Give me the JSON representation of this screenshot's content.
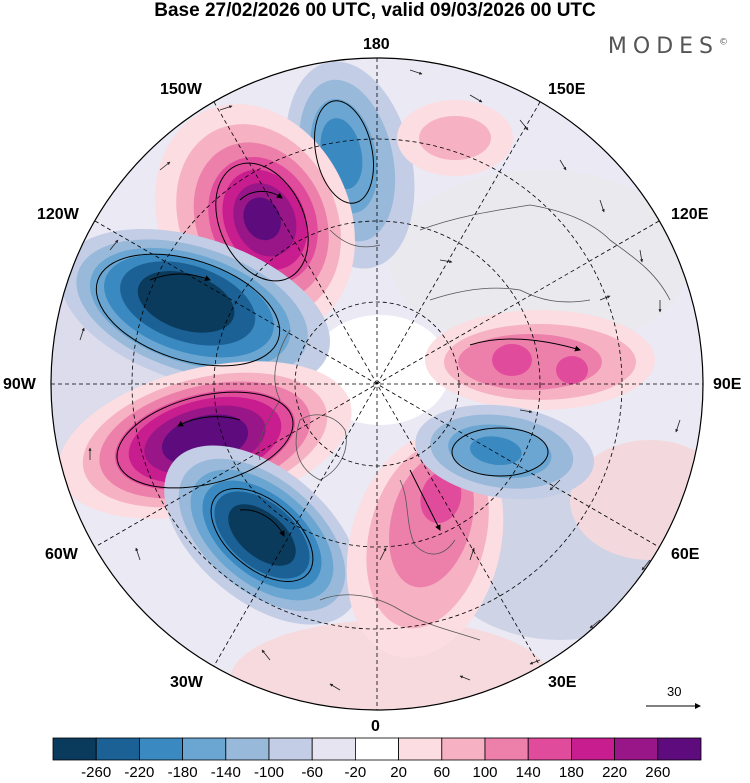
{
  "header": {
    "title": "Base 27/02/2026 00 UTC, valid 09/03/2026 00 UTC",
    "brand": "MODES",
    "brand_mark": "©"
  },
  "longitude_labels": {
    "n180": "180",
    "w150": "150W",
    "e150": "150E",
    "w120": "120W",
    "e120": "120E",
    "w90": "90W",
    "e90": "90E",
    "w60": "60W",
    "e60": "60E",
    "w30": "30W",
    "e30": "30E",
    "zero": "0"
  },
  "reference_vector": {
    "label": "30"
  },
  "colorbar": {
    "colors": [
      "#0b3b5c",
      "#1b6196",
      "#3a89c0",
      "#6aa6d1",
      "#98b9d9",
      "#c3cde6",
      "#e6e4f1",
      "#ffffff",
      "#fcdde2",
      "#f6b2c3",
      "#ed7fab",
      "#e14b9c",
      "#c81d8e",
      "#981687",
      "#5e0c7d"
    ],
    "labels": [
      "-260",
      "-220",
      "-180",
      "-140",
      "-100",
      "-60",
      "-20",
      "20",
      "60",
      "100",
      "140",
      "180",
      "220",
      "260"
    ]
  },
  "anomalies": [
    {
      "name": "negative-anomaly-north-pacific",
      "value": -180,
      "color": "#3a89c0"
    },
    {
      "name": "positive-anomaly-gulf-of-alaska",
      "value": 260,
      "color": "#5e0c7d"
    },
    {
      "name": "negative-anomaly-canada",
      "value": -260,
      "color": "#0b3b5c"
    },
    {
      "name": "positive-anomaly-eastern-north-america",
      "value": 260,
      "color": "#5e0c7d"
    },
    {
      "name": "negative-anomaly-north-atlantic",
      "value": -260,
      "color": "#0b3b5c"
    },
    {
      "name": "positive-anomaly-scandinavia",
      "value": 140,
      "color": "#e14b9c"
    },
    {
      "name": "positive-anomaly-siberia",
      "value": 140,
      "color": "#e14b9c"
    },
    {
      "name": "negative-anomaly-central-asia",
      "value": -180,
      "color": "#3a89c0"
    },
    {
      "name": "positive-anomaly-bering-sea",
      "value": 60,
      "color": "#f6b2c3"
    }
  ]
}
